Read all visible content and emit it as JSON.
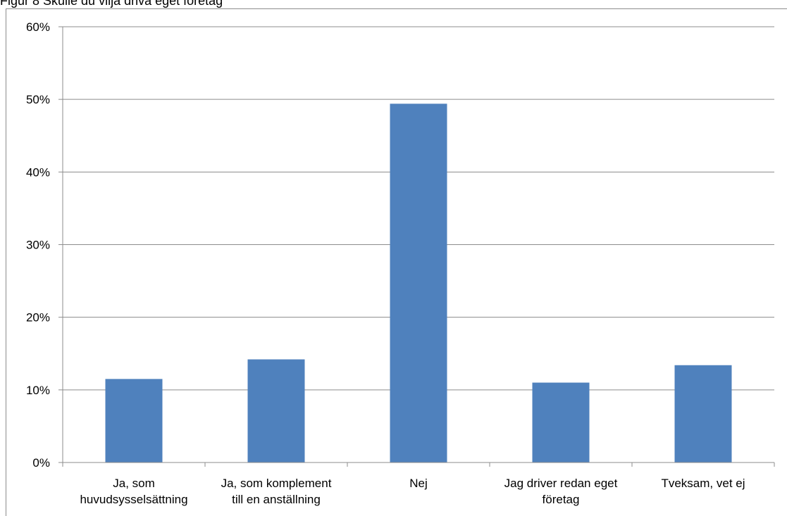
{
  "caption": "Figur 8 Skulle du vilja driva eget företag",
  "chart_data": {
    "type": "bar",
    "title": "",
    "xlabel": "",
    "ylabel": "",
    "categories": [
      [
        "Ja, som",
        "huvudsysselsättning"
      ],
      [
        "Ja, som komplement",
        "till en anställning"
      ],
      [
        "Nej"
      ],
      [
        "Jag driver redan eget",
        "företag"
      ],
      [
        "Tveksam, vet ej"
      ]
    ],
    "values": [
      11.5,
      14.2,
      49.4,
      11.0,
      13.4
    ],
    "ylim": [
      0,
      60
    ],
    "yticks": [
      0,
      10,
      20,
      30,
      40,
      50,
      60
    ],
    "ytick_labels": [
      "0%",
      "10%",
      "20%",
      "30%",
      "40%",
      "50%",
      "60%"
    ],
    "grid": true,
    "legend": "none",
    "bar_color": "#4f81bd"
  }
}
